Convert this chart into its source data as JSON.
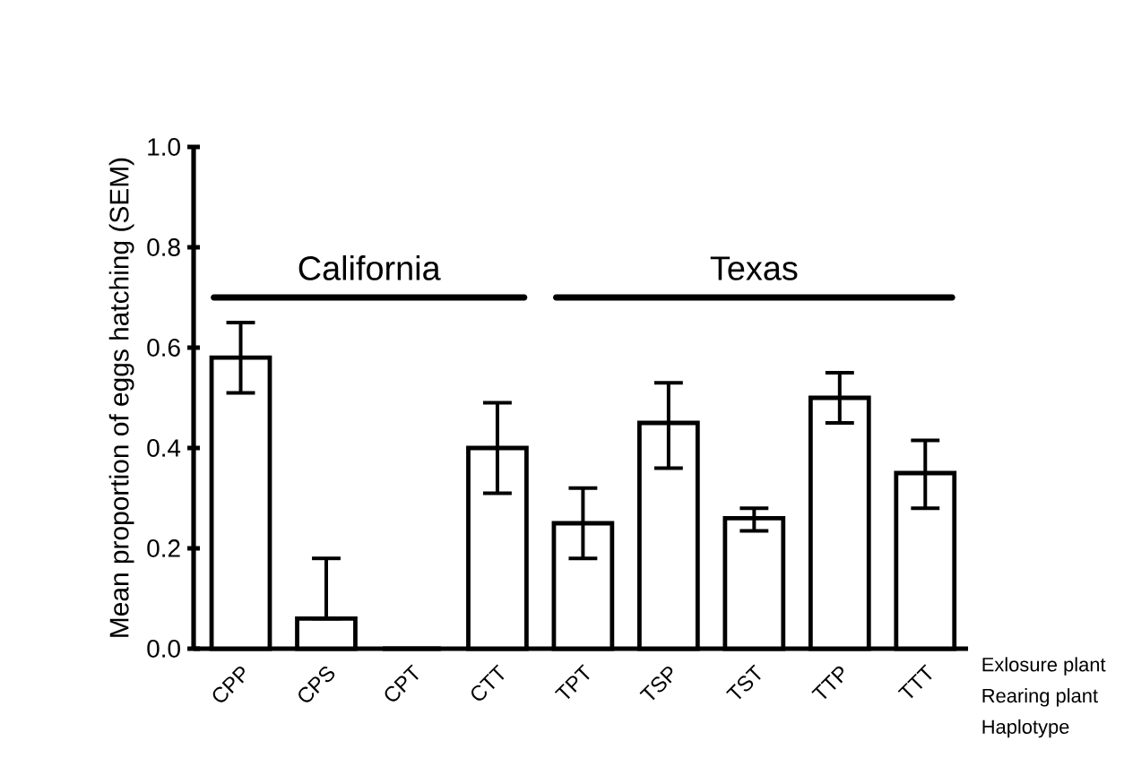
{
  "chart_data": {
    "type": "bar",
    "ylabel": "Mean proportion of eggs hatching (SEM)",
    "categories": [
      "CPP",
      "CPS",
      "CPT",
      "CTT",
      "TPT",
      "TSP",
      "TST",
      "TTP",
      "TTT"
    ],
    "values": [
      0.58,
      0.06,
      0,
      0.4,
      0.25,
      0.45,
      0.26,
      0.5,
      0.35
    ],
    "errors": [
      [
        0.51,
        0.65
      ],
      [
        0.06,
        0.18
      ],
      null,
      [
        0.31,
        0.49
      ],
      [
        0.18,
        0.32
      ],
      [
        0.36,
        0.53
      ],
      [
        0.235,
        0.28
      ],
      [
        0.45,
        0.55
      ],
      [
        0.28,
        0.415
      ]
    ],
    "color": "#ffffff",
    "ylim": [
      0,
      1
    ],
    "yticks": [
      {
        "value": 0,
        "label": "0.0"
      },
      {
        "value": 0.2,
        "label": "0.2"
      },
      {
        "value": 0.4,
        "label": "0.4"
      },
      {
        "value": 0.6,
        "label": "0.6"
      },
      {
        "value": 0.8,
        "label": "0.8"
      },
      {
        "value": 1,
        "label": "1.0"
      }
    ],
    "annotations": [
      "California",
      "Texas",
      "Exlosure plant",
      "Rearing plant",
      "Haplotype"
    ]
  }
}
